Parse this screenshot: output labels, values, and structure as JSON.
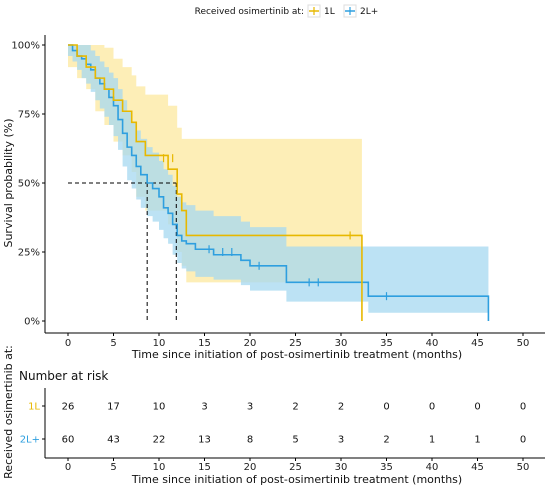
{
  "chart_data": {
    "type": "line",
    "subtype": "kaplan-meier",
    "legend": {
      "title": "Received osimertinib at:",
      "entries": [
        "1L",
        "2L+"
      ],
      "position": "top"
    },
    "x_axis": {
      "label": "Time since initiation of post-osimertinib treatment (months)",
      "ticks": [
        "0",
        "5",
        "10",
        "15",
        "20",
        "25",
        "30",
        "35",
        "40",
        "45",
        "50"
      ],
      "range": [
        -2,
        52
      ]
    },
    "y_axis": {
      "label": "Survival probability (%)",
      "ticks": [
        "0%",
        "25%",
        "50%",
        "75%",
        "100%"
      ],
      "range": [
        0,
        1
      ]
    },
    "grid": false,
    "median_lines": [
      {
        "series": "2L+",
        "x": 8.7,
        "y": 0.5
      },
      {
        "series": "1L",
        "x": 11.9,
        "y": 0.5
      }
    ],
    "series": [
      {
        "name": "1L",
        "color": "#E7B800",
        "band_color": "#FCE89F",
        "steps": [
          [
            0,
            1.0
          ],
          [
            1,
            0.96
          ],
          [
            2,
            0.92
          ],
          [
            3,
            0.88
          ],
          [
            4,
            0.84
          ],
          [
            5,
            0.8
          ],
          [
            6,
            0.76
          ],
          [
            7,
            0.72
          ],
          [
            7.5,
            0.65
          ],
          [
            8.5,
            0.6
          ],
          [
            11,
            0.55
          ],
          [
            12,
            0.46
          ],
          [
            12.5,
            0.4
          ],
          [
            13,
            0.31
          ],
          [
            32,
            0.31
          ],
          [
            32.3,
            0.0
          ]
        ],
        "upper": [
          [
            0,
            1.0
          ],
          [
            1,
            1.0
          ],
          [
            2,
            1.0
          ],
          [
            3,
            1.0
          ],
          [
            4,
            0.99
          ],
          [
            5,
            0.95
          ],
          [
            6,
            0.92
          ],
          [
            7,
            0.89
          ],
          [
            7.5,
            0.85
          ],
          [
            8.5,
            0.82
          ],
          [
            11,
            0.78
          ],
          [
            12,
            0.7
          ],
          [
            12.5,
            0.66
          ],
          [
            32,
            0.66
          ],
          [
            32.3,
            0.66
          ]
        ],
        "lower": [
          [
            0,
            0.92
          ],
          [
            1,
            0.88
          ],
          [
            2,
            0.84
          ],
          [
            3,
            0.76
          ],
          [
            4,
            0.71
          ],
          [
            5,
            0.65
          ],
          [
            6,
            0.6
          ],
          [
            7,
            0.54
          ],
          [
            7.5,
            0.45
          ],
          [
            8.5,
            0.4
          ],
          [
            11,
            0.35
          ],
          [
            12,
            0.25
          ],
          [
            12.5,
            0.2
          ],
          [
            13,
            0.14
          ],
          [
            32,
            0.14
          ],
          [
            32.3,
            0.14
          ]
        ],
        "censor": [
          [
            10.5,
            0.59
          ],
          [
            11.5,
            0.59
          ],
          [
            31,
            0.31
          ]
        ]
      },
      {
        "name": "2L+",
        "color": "#2E9FDF",
        "band_color": "#A5D8F0",
        "steps": [
          [
            0,
            1.0
          ],
          [
            0.5,
            0.98
          ],
          [
            1,
            0.96
          ],
          [
            1.5,
            0.95
          ],
          [
            2,
            0.93
          ],
          [
            2.5,
            0.91
          ],
          [
            3,
            0.88
          ],
          [
            3.5,
            0.86
          ],
          [
            4,
            0.84
          ],
          [
            4.5,
            0.81
          ],
          [
            5,
            0.78
          ],
          [
            5.5,
            0.73
          ],
          [
            6,
            0.68
          ],
          [
            6.5,
            0.63
          ],
          [
            7,
            0.6
          ],
          [
            7.5,
            0.56
          ],
          [
            8,
            0.53
          ],
          [
            8.7,
            0.5
          ],
          [
            9.3,
            0.48
          ],
          [
            10,
            0.45
          ],
          [
            10.5,
            0.41
          ],
          [
            11,
            0.39
          ],
          [
            11.5,
            0.35
          ],
          [
            12,
            0.31
          ],
          [
            12.5,
            0.29
          ],
          [
            13,
            0.28
          ],
          [
            14,
            0.26
          ],
          [
            15,
            0.26
          ],
          [
            16,
            0.24
          ],
          [
            19,
            0.22
          ],
          [
            20,
            0.2
          ],
          [
            23,
            0.2
          ],
          [
            24,
            0.14
          ],
          [
            32,
            0.14
          ],
          [
            33,
            0.09
          ],
          [
            46,
            0.09
          ],
          [
            46.2,
            0.0
          ]
        ],
        "upper": [
          [
            0,
            1.0
          ],
          [
            0.5,
            1.0
          ],
          [
            1,
            1.0
          ],
          [
            1.5,
            1.0
          ],
          [
            2,
            1.0
          ],
          [
            2.5,
            0.98
          ],
          [
            3,
            0.96
          ],
          [
            3.5,
            0.94
          ],
          [
            4,
            0.92
          ],
          [
            4.5,
            0.9
          ],
          [
            5,
            0.88
          ],
          [
            5.5,
            0.84
          ],
          [
            6,
            0.8
          ],
          [
            6.5,
            0.76
          ],
          [
            7,
            0.72
          ],
          [
            7.5,
            0.69
          ],
          [
            8,
            0.66
          ],
          [
            8.7,
            0.63
          ],
          [
            9.3,
            0.61
          ],
          [
            10,
            0.58
          ],
          [
            10.5,
            0.55
          ],
          [
            11,
            0.53
          ],
          [
            11.5,
            0.49
          ],
          [
            12,
            0.45
          ],
          [
            12.5,
            0.43
          ],
          [
            13,
            0.42
          ],
          [
            14,
            0.4
          ],
          [
            15,
            0.4
          ],
          [
            16,
            0.38
          ],
          [
            19,
            0.36
          ],
          [
            20,
            0.34
          ],
          [
            23,
            0.34
          ],
          [
            24,
            0.27
          ],
          [
            32,
            0.27
          ],
          [
            33,
            0.27
          ],
          [
            46,
            0.27
          ],
          [
            46.2,
            0.27
          ]
        ],
        "lower": [
          [
            0,
            0.96
          ],
          [
            0.5,
            0.94
          ],
          [
            1,
            0.91
          ],
          [
            1.5,
            0.88
          ],
          [
            2,
            0.86
          ],
          [
            2.5,
            0.83
          ],
          [
            3,
            0.8
          ],
          [
            3.5,
            0.77
          ],
          [
            4,
            0.74
          ],
          [
            4.5,
            0.71
          ],
          [
            5,
            0.67
          ],
          [
            5.5,
            0.62
          ],
          [
            6,
            0.56
          ],
          [
            6.5,
            0.51
          ],
          [
            7,
            0.48
          ],
          [
            7.5,
            0.44
          ],
          [
            8,
            0.41
          ],
          [
            8.7,
            0.38
          ],
          [
            9.3,
            0.36
          ],
          [
            10,
            0.33
          ],
          [
            10.5,
            0.3
          ],
          [
            11,
            0.28
          ],
          [
            11.5,
            0.24
          ],
          [
            12,
            0.21
          ],
          [
            12.5,
            0.19
          ],
          [
            13,
            0.18
          ],
          [
            14,
            0.16
          ],
          [
            15,
            0.16
          ],
          [
            16,
            0.15
          ],
          [
            19,
            0.13
          ],
          [
            20,
            0.11
          ],
          [
            23,
            0.11
          ],
          [
            24,
            0.07
          ],
          [
            32,
            0.07
          ],
          [
            33,
            0.03
          ],
          [
            46,
            0.03
          ],
          [
            46.2,
            0.03
          ]
        ],
        "censor": [
          [
            15.5,
            0.26
          ],
          [
            17,
            0.25
          ],
          [
            18,
            0.25
          ],
          [
            21,
            0.2
          ],
          [
            26.5,
            0.14
          ],
          [
            27.5,
            0.14
          ],
          [
            35,
            0.09
          ]
        ]
      }
    ],
    "risk_table": {
      "title": "Number at risk",
      "ylabel": "Received osimertinib at:",
      "xlabel": "Time since initiation of post-osimertinib treatment (months)",
      "times": [
        "0",
        "5",
        "10",
        "15",
        "20",
        "25",
        "30",
        "35",
        "40",
        "45",
        "50"
      ],
      "rows": [
        {
          "label": "1L",
          "color": "#E7B800",
          "counts": [
            "26",
            "17",
            "10",
            "3",
            "3",
            "2",
            "2",
            "0",
            "0",
            "0",
            "0"
          ]
        },
        {
          "label": "2L+",
          "color": "#2E9FDF",
          "counts": [
            "60",
            "43",
            "22",
            "13",
            "8",
            "5",
            "3",
            "2",
            "1",
            "1",
            "0"
          ]
        }
      ]
    }
  }
}
